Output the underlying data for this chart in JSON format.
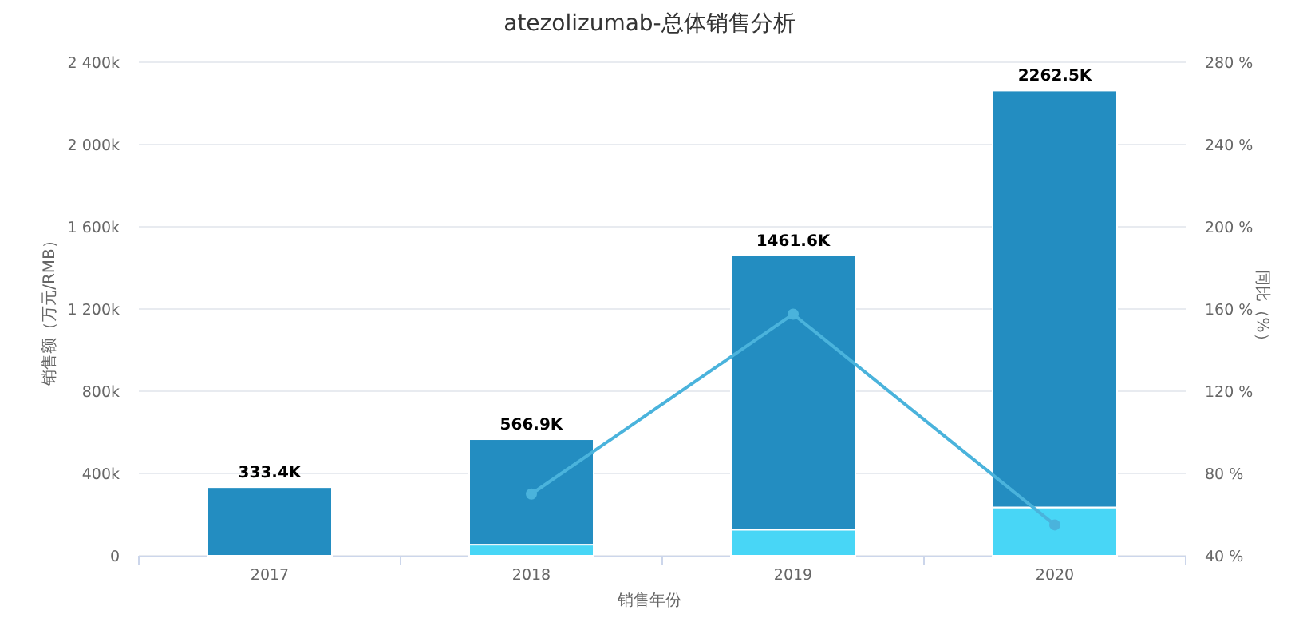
{
  "chart_data": {
    "type": "bar",
    "title": "atezolizumab-总体销售分析",
    "xlabel": "销售年份",
    "ylabel": "销售额（万元/RMB）",
    "y2label": "同比（%）",
    "categories": [
      "2017",
      "2018",
      "2019",
      "2020"
    ],
    "stacked": true,
    "series": [
      {
        "color": "#48d6f6",
        "values": [
          0,
          54,
          127,
          235
        ]
      },
      {
        "color": "#238dc1",
        "values": [
          333.4,
          512.9,
          1334.6,
          2027.5
        ]
      },
      {
        "type": "line",
        "axis": "y2",
        "color": "#4ab3dc",
        "marker": "circle",
        "values": [
          null,
          70,
          157.5,
          55
        ]
      }
    ],
    "totals": [
      "333.4K",
      "566.9K",
      "1461.6K",
      "2262.5K"
    ],
    "ylim": [
      0,
      2400
    ],
    "yticks": [
      {
        "value": 0,
        "label": "0"
      },
      {
        "value": 400,
        "label": "400k"
      },
      {
        "value": 800,
        "label": "800k"
      },
      {
        "value": 1200,
        "label": "1 200k"
      },
      {
        "value": 1600,
        "label": "1 600k"
      },
      {
        "value": 2000,
        "label": "2 000k"
      },
      {
        "value": 2400,
        "label": "2 400k"
      }
    ],
    "y2lim": [
      40,
      280
    ],
    "y2ticks": [
      {
        "value": 40,
        "label": "40 %"
      },
      {
        "value": 80,
        "label": "80 %"
      },
      {
        "value": 120,
        "label": "120 %"
      },
      {
        "value": 160,
        "label": "160 %"
      },
      {
        "value": 200,
        "label": "200 %"
      },
      {
        "value": 240,
        "label": "240 %"
      },
      {
        "value": 280,
        "label": "280 %"
      }
    ],
    "grid": "y"
  }
}
